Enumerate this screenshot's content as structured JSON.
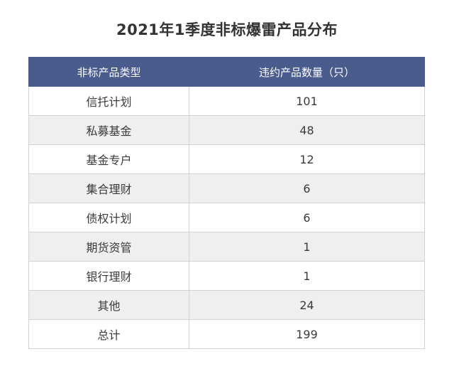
{
  "title": "2021年1季度非标爆雷产品分布",
  "columns": [
    "非标产品类型",
    "违约产品数量（只）"
  ],
  "rows": [
    {
      "type": "信托计划",
      "count": "101"
    },
    {
      "type": "私募基金",
      "count": "48"
    },
    {
      "type": "基金专户",
      "count": "12"
    },
    {
      "type": "集合理财",
      "count": "6"
    },
    {
      "type": "债权计划",
      "count": "6"
    },
    {
      "type": "期货资管",
      "count": "1"
    },
    {
      "type": "银行理财",
      "count": "1"
    },
    {
      "type": "其他",
      "count": "24"
    },
    {
      "type": "总计",
      "count": "199"
    }
  ],
  "colors": {
    "header_bg": "#4a5b8e",
    "header_text": "#ffffff",
    "stripe_bg": "#efefef",
    "border": "#d2d2d2"
  },
  "chart_data": {
    "type": "table",
    "title": "2021年1季度非标爆雷产品分布",
    "columns": [
      "非标产品类型",
      "违约产品数量（只）"
    ],
    "categories": [
      "信托计划",
      "私募基金",
      "基金专户",
      "集合理财",
      "债权计划",
      "期货资管",
      "银行理财",
      "其他",
      "总计"
    ],
    "values": [
      101,
      48,
      12,
      6,
      6,
      1,
      1,
      24,
      199
    ]
  }
}
